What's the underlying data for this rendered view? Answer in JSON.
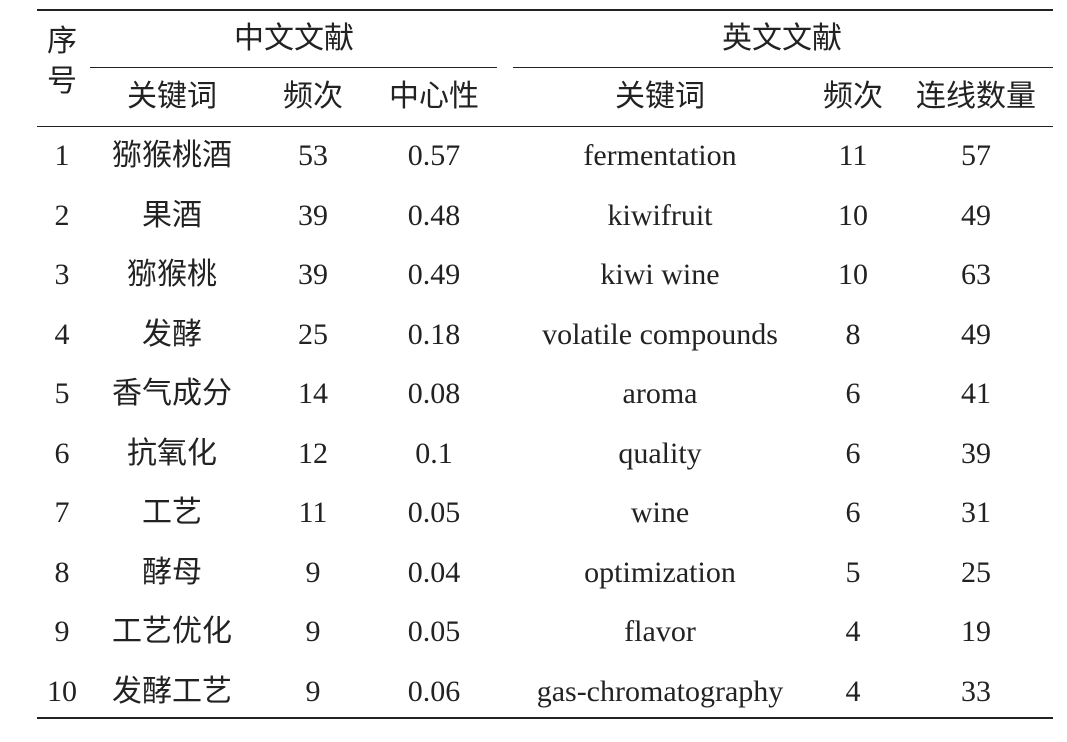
{
  "table": {
    "index_header": "序号",
    "group_headers": [
      "中文文献",
      "英文文献"
    ],
    "columns": [
      "关键词",
      "频次",
      "中心性",
      "关键词",
      "频次",
      "连线数量"
    ],
    "rows": [
      [
        1,
        "猕猴桃酒",
        53,
        0.57,
        "fermentation",
        11,
        57
      ],
      [
        2,
        "果酒",
        39,
        0.48,
        "kiwifruit",
        10,
        49
      ],
      [
        3,
        "猕猴桃",
        39,
        0.49,
        "kiwi wine",
        10,
        63
      ],
      [
        4,
        "发酵",
        25,
        0.18,
        "volatile compounds",
        8,
        49
      ],
      [
        5,
        "香气成分",
        14,
        0.08,
        "aroma",
        6,
        41
      ],
      [
        6,
        "抗氧化",
        12,
        0.1,
        "quality",
        6,
        39
      ],
      [
        7,
        "工艺",
        11,
        0.05,
        "wine",
        6,
        31
      ],
      [
        8,
        "酵母",
        9,
        0.04,
        "optimization",
        5,
        25
      ],
      [
        9,
        "工艺优化",
        9,
        0.05,
        "flavor",
        4,
        19
      ],
      [
        10,
        "发酵工艺",
        9,
        0.06,
        "gas-chromatography",
        4,
        33
      ]
    ]
  }
}
